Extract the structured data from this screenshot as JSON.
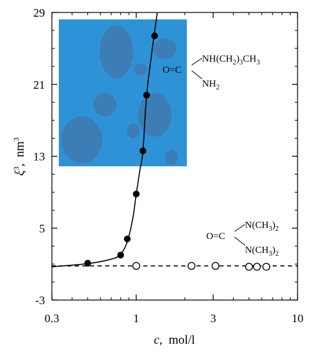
{
  "chart_data": {
    "type": "scatter",
    "x_scale": "log",
    "xlim": [
      0.3,
      10
    ],
    "ylim": [
      -3,
      29
    ],
    "x_ticks": [
      {
        "value": 0.3,
        "label": "0.3"
      },
      {
        "value": 1,
        "label": "1"
      },
      {
        "value": 3,
        "label": "3"
      },
      {
        "value": 10,
        "label": "10"
      }
    ],
    "y_ticks": [
      {
        "value": -3,
        "label": "-3"
      },
      {
        "value": 5,
        "label": "5"
      },
      {
        "value": 13,
        "label": "13"
      },
      {
        "value": 21,
        "label": "21"
      },
      {
        "value": 29,
        "label": "29"
      }
    ],
    "xlabel_symbol": "c",
    "xlabel_unit": "mol/l",
    "ylabel_symbol": "ξ",
    "ylabel_sup": "3",
    "ylabel_unit": "nm",
    "ylabel_unit_sup": "3",
    "grid": false,
    "series": [
      {
        "marker": "filled-circle",
        "points": [
          {
            "x": 0.5,
            "y": 1.1
          },
          {
            "x": 0.8,
            "y": 2.0
          },
          {
            "x": 0.88,
            "y": 3.8
          },
          {
            "x": 1.0,
            "y": 8.8
          },
          {
            "x": 1.1,
            "y": 13.6
          },
          {
            "x": 1.16,
            "y": 19.8
          },
          {
            "x": 1.3,
            "y": 26.4
          }
        ],
        "line": "solid",
        "curve": [
          {
            "x": 0.3,
            "y": 0.7
          },
          {
            "x": 0.5,
            "y": 1.05
          },
          {
            "x": 0.7,
            "y": 1.55
          },
          {
            "x": 0.8,
            "y": 2.1
          },
          {
            "x": 0.88,
            "y": 3.5
          },
          {
            "x": 0.95,
            "y": 6.0
          },
          {
            "x": 1.0,
            "y": 8.8
          },
          {
            "x": 1.05,
            "y": 11.3
          },
          {
            "x": 1.1,
            "y": 13.6
          },
          {
            "x": 1.16,
            "y": 19.8
          },
          {
            "x": 1.25,
            "y": 24.6
          },
          {
            "x": 1.35,
            "y": 29
          }
        ]
      },
      {
        "marker": "open-circle",
        "points": [
          {
            "x": 1.0,
            "y": 0.8
          },
          {
            "x": 2.2,
            "y": 0.8
          },
          {
            "x": 3.1,
            "y": 0.8
          },
          {
            "x": 5.0,
            "y": 0.7
          },
          {
            "x": 5.6,
            "y": 0.7
          },
          {
            "x": 6.4,
            "y": 0.7
          }
        ],
        "line": "dashed",
        "curve": [
          {
            "x": 0.3,
            "y": 0.8
          },
          {
            "x": 10,
            "y": 0.8
          }
        ]
      }
    ],
    "annotations": {
      "butylurea": {
        "left": "O=C",
        "upper": {
          "text": "NH(CH",
          "sub": "2",
          "text2": ")",
          "sub2": "3",
          "text3": "CH",
          "sub3": "3"
        },
        "lower": {
          "text": "NH",
          "sub": "2"
        }
      },
      "tetramethylurea": {
        "left": "O=C",
        "upper": {
          "text": "N(CH",
          "sub": "3",
          "text2": ")",
          "sub2": "2"
        },
        "lower": {
          "text": "N(CH",
          "sub": "3",
          "text2": ")",
          "sub2": "2"
        }
      }
    },
    "inset": {
      "background": "#2e92d6",
      "blob_color": "#3d7db5",
      "blobs": [
        {
          "cx": 0.45,
          "cy": 0.78,
          "rx": 0.13,
          "ry": 0.18
        },
        {
          "cx": 0.83,
          "cy": 0.8,
          "rx": 0.09,
          "ry": 0.07
        },
        {
          "cx": 0.64,
          "cy": 0.66,
          "rx": 0.05,
          "ry": 0.04
        },
        {
          "cx": 0.36,
          "cy": 0.42,
          "rx": 0.09,
          "ry": 0.08
        },
        {
          "cx": 0.75,
          "cy": 0.35,
          "rx": 0.13,
          "ry": 0.15
        },
        {
          "cx": 0.18,
          "cy": 0.18,
          "rx": 0.16,
          "ry": 0.16
        },
        {
          "cx": 0.58,
          "cy": 0.24,
          "rx": 0.05,
          "ry": 0.05
        },
        {
          "cx": 0.88,
          "cy": 0.06,
          "rx": 0.05,
          "ry": 0.05
        }
      ]
    }
  }
}
